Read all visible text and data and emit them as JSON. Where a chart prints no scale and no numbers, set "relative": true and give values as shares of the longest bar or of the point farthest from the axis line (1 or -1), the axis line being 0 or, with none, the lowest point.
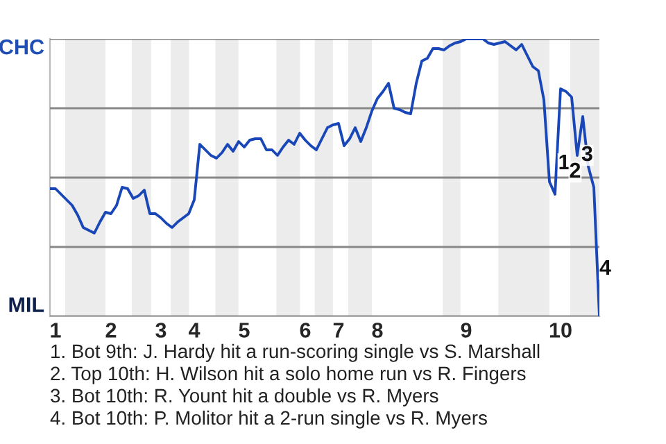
{
  "chart_data": {
    "type": "line",
    "relative": true,
    "categories": [
      null,
      "1",
      null,
      null,
      null,
      null,
      null,
      null,
      null,
      null,
      null,
      "2",
      null,
      null,
      null,
      null,
      null,
      null,
      null,
      null,
      "3",
      null,
      null,
      null,
      null,
      null,
      "4",
      null,
      null,
      null,
      null,
      null,
      null,
      null,
      null,
      "5",
      null,
      null,
      null,
      null,
      null,
      null,
      null,
      null,
      null,
      null,
      "6",
      null,
      null,
      null,
      null,
      null,
      "7",
      null,
      null,
      null,
      null,
      null,
      null,
      "8",
      null,
      null,
      null,
      null,
      null,
      null,
      null,
      null,
      null,
      null,
      null,
      null,
      null,
      null,
      null,
      "9",
      null,
      null,
      null,
      null,
      null,
      null,
      null,
      null,
      null,
      null,
      null,
      null,
      null,
      null,
      null,
      null,
      "10",
      null,
      null,
      null,
      null,
      null,
      null,
      null
    ],
    "series": [
      {
        "color": "#1a47b8",
        "values": [
          0.46,
          0.46,
          0.44,
          0.42,
          0.4,
          0.365,
          0.32,
          0.31,
          0.3,
          0.34,
          0.375,
          0.37,
          0.4,
          0.465,
          0.46,
          0.425,
          0.435,
          0.455,
          0.37,
          0.37,
          0.355,
          0.335,
          0.32,
          0.34,
          0.355,
          0.37,
          0.42,
          0.62,
          0.6,
          0.58,
          0.57,
          0.59,
          0.62,
          0.595,
          0.63,
          0.61,
          0.635,
          0.64,
          0.64,
          0.6,
          0.6,
          0.58,
          0.61,
          0.635,
          0.62,
          0.66,
          0.635,
          0.615,
          0.6,
          0.64,
          0.68,
          0.69,
          0.695,
          0.615,
          0.64,
          0.68,
          0.63,
          0.68,
          0.74,
          0.785,
          0.81,
          0.84,
          0.75,
          0.745,
          0.735,
          0.73,
          0.84,
          0.92,
          0.93,
          0.965,
          0.965,
          0.96,
          0.975,
          0.985,
          0.99,
          1.0,
          1.0,
          1.0,
          1.0,
          0.985,
          0.98,
          0.985,
          0.99,
          0.975,
          0.96,
          0.98,
          0.94,
          0.9,
          0.885,
          0.78,
          0.485,
          0.44,
          0.82,
          0.81,
          0.79,
          0.58,
          0.72,
          0.54,
          0.465,
          0
        ]
      }
    ],
    "grid": "y",
    "marker": "none",
    "line_style": "solid",
    "annotations": [
      "CHC",
      "MIL",
      "1",
      "2",
      "3",
      "4",
      "1. Bot 9th: J. Hardy hit a run-scoring single vs S. Marshall",
      "2. Top 10th: H. Wilson hit a solo home run vs R. Fingers",
      "3. Bot 10th: R. Yount hit a double vs R. Myers",
      "4. Bot 10th: P. Molitor hit a 2-run single vs R. Myers"
    ]
  }
}
